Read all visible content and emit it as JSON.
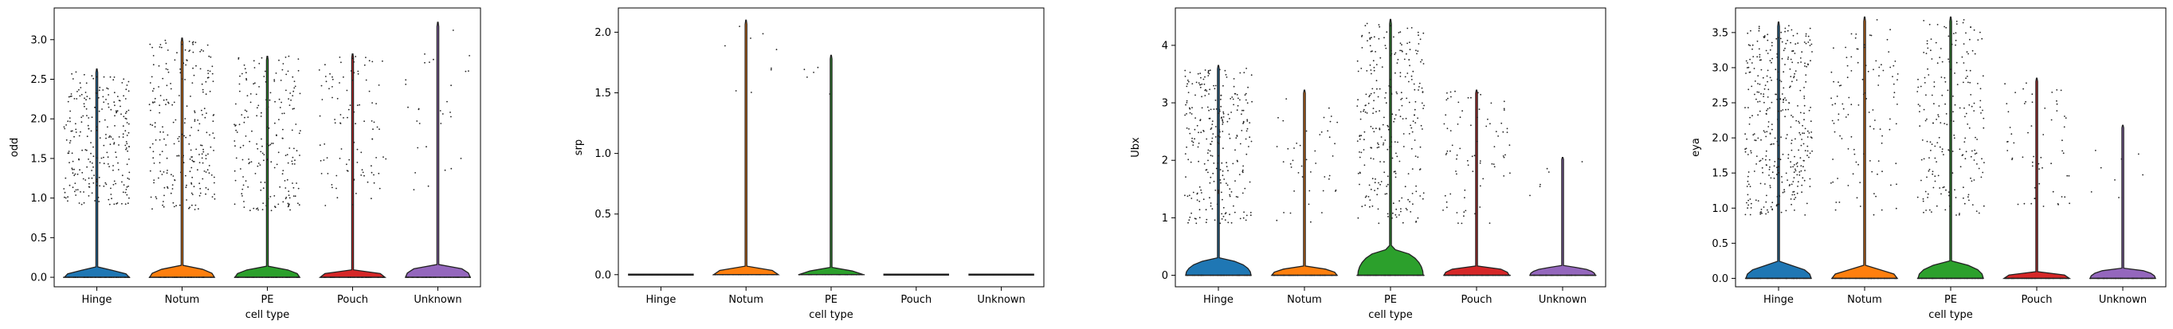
{
  "chart_data": [
    {
      "type": "violin",
      "ylabel": "odd",
      "xlabel": "cell type",
      "categories": [
        "Hinge",
        "Notum",
        "PE",
        "Pouch",
        "Unknown"
      ],
      "colors": [
        "#1f77b4",
        "#ff7f0e",
        "#2ca02c",
        "#d62728",
        "#9467bd"
      ],
      "ylim": [
        -0.12,
        3.4
      ],
      "yticks": [
        0.0,
        0.5,
        1.0,
        1.5,
        2.0,
        2.5,
        3.0
      ],
      "ytick_labels": [
        "0.0",
        "0.5",
        "1.0",
        "1.5",
        "2.0",
        "2.5",
        "3.0"
      ],
      "max": [
        2.63,
        3.02,
        2.79,
        2.82,
        3.22
      ],
      "bulge": [
        0.1,
        0.13,
        0.12,
        0.09,
        0.16
      ],
      "points": [
        {
          "n": 260,
          "lo": 0.9,
          "hi": 2.6
        },
        {
          "n": 240,
          "lo": 0.85,
          "hi": 3.0
        },
        {
          "n": 200,
          "lo": 0.8,
          "hi": 2.8
        },
        {
          "n": 100,
          "lo": 0.9,
          "hi": 2.8
        },
        {
          "n": 30,
          "lo": 1.1,
          "hi": 3.2
        }
      ]
    },
    {
      "type": "violin",
      "ylabel": "srp",
      "xlabel": "cell type",
      "categories": [
        "Hinge",
        "Notum",
        "PE",
        "Pouch",
        "Unknown"
      ],
      "colors": [
        "#1f77b4",
        "#ff7f0e",
        "#2ca02c",
        "#d62728",
        "#9467bd"
      ],
      "ylim": [
        -0.1,
        2.2
      ],
      "yticks": [
        0.0,
        0.5,
        1.0,
        1.5,
        2.0
      ],
      "ytick_labels": [
        "0.0",
        "0.5",
        "1.0",
        "1.5",
        "2.0"
      ],
      "max": [
        0.0,
        2.1,
        1.81,
        0.0,
        0.0
      ],
      "bulge": [
        0.0,
        0.06,
        0.04,
        0.0,
        0.0
      ],
      "points": [
        {
          "n": 0,
          "lo": 0,
          "hi": 0
        },
        {
          "n": 9,
          "lo": 1.4,
          "hi": 2.1
        },
        {
          "n": 5,
          "lo": 1.3,
          "hi": 1.8
        },
        {
          "n": 0,
          "lo": 0,
          "hi": 0
        },
        {
          "n": 0,
          "lo": 0,
          "hi": 0
        }
      ]
    },
    {
      "type": "violin",
      "ylabel": "Ubx",
      "xlabel": "cell type",
      "categories": [
        "Hinge",
        "Notum",
        "PE",
        "Pouch",
        "Unknown"
      ],
      "colors": [
        "#1f77b4",
        "#ff7f0e",
        "#2ca02c",
        "#d62728",
        "#9467bd"
      ],
      "ylim": [
        -0.2,
        4.65
      ],
      "yticks": [
        0,
        1,
        2,
        3,
        4
      ],
      "ytick_labels": [
        "0",
        "1",
        "2",
        "3",
        "4"
      ],
      "max": [
        3.65,
        3.22,
        4.45,
        3.22,
        2.05
      ],
      "bulge": [
        0.28,
        0.14,
        0.45,
        0.16,
        0.15
      ],
      "points": [
        {
          "n": 280,
          "lo": 0.9,
          "hi": 3.6
        },
        {
          "n": 45,
          "lo": 0.9,
          "hi": 3.2
        },
        {
          "n": 280,
          "lo": 0.9,
          "hi": 4.4
        },
        {
          "n": 80,
          "lo": 0.9,
          "hi": 3.2
        },
        {
          "n": 6,
          "lo": 1.3,
          "hi": 2.0
        }
      ]
    },
    {
      "type": "violin",
      "ylabel": "eya",
      "xlabel": "cell type",
      "categories": [
        "Hinge",
        "Notum",
        "PE",
        "Pouch",
        "Unknown"
      ],
      "colors": [
        "#1f77b4",
        "#ff7f0e",
        "#2ca02c",
        "#d62728",
        "#9467bd"
      ],
      "ylim": [
        -0.12,
        3.85
      ],
      "yticks": [
        0.0,
        0.5,
        1.0,
        1.5,
        2.0,
        2.5,
        3.0,
        3.5
      ],
      "ytick_labels": [
        "0.0",
        "0.5",
        "1.0",
        "1.5",
        "2.0",
        "2.5",
        "3.0",
        "3.5"
      ],
      "max": [
        3.65,
        3.72,
        3.72,
        2.85,
        2.18
      ],
      "bulge": [
        0.2,
        0.14,
        0.22,
        0.09,
        0.14
      ],
      "points": [
        {
          "n": 380,
          "lo": 0.9,
          "hi": 3.6
        },
        {
          "n": 110,
          "lo": 0.9,
          "hi": 3.7
        },
        {
          "n": 210,
          "lo": 0.9,
          "hi": 3.7
        },
        {
          "n": 60,
          "lo": 0.9,
          "hi": 2.8
        },
        {
          "n": 8,
          "lo": 1.0,
          "hi": 2.1
        }
      ]
    }
  ]
}
